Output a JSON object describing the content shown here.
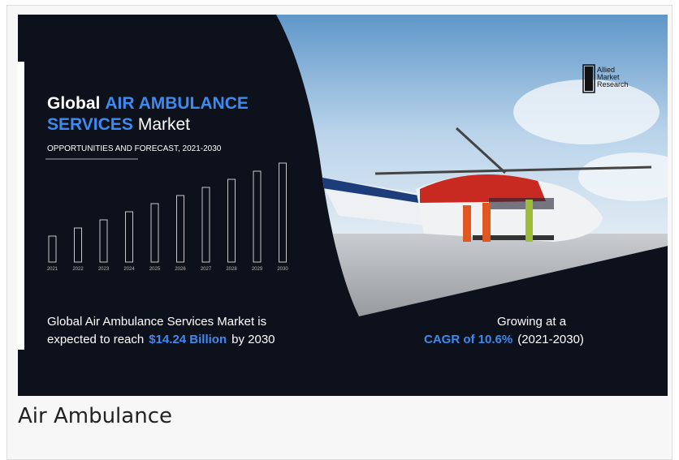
{
  "infographic": {
    "title": {
      "lead": "Global",
      "highlight1": "AIR AMBULANCE",
      "highlight2": "SERVICES",
      "tail": "Market"
    },
    "subtitle": "OPPORTUNITIES AND FORECAST, 2021-2030",
    "years": [
      "2021",
      "2022",
      "2023",
      "2024",
      "2025",
      "2026",
      "2027",
      "2028",
      "2029",
      "2030"
    ],
    "summary": {
      "line1": "Global Air Ambulance Services Market is",
      "line2_lead": "expected to reach",
      "line2_value": "$14.24 Billion",
      "line2_tail": "by 2030"
    },
    "growth": {
      "line1": "Growing at a",
      "line2_value": "CAGR of 10.6%",
      "line2_tail": "(2021-2030)"
    },
    "logo": {
      "line1": "Allied",
      "line2": "Market",
      "line3": "Research"
    }
  },
  "caption": "Air Ambulance"
}
